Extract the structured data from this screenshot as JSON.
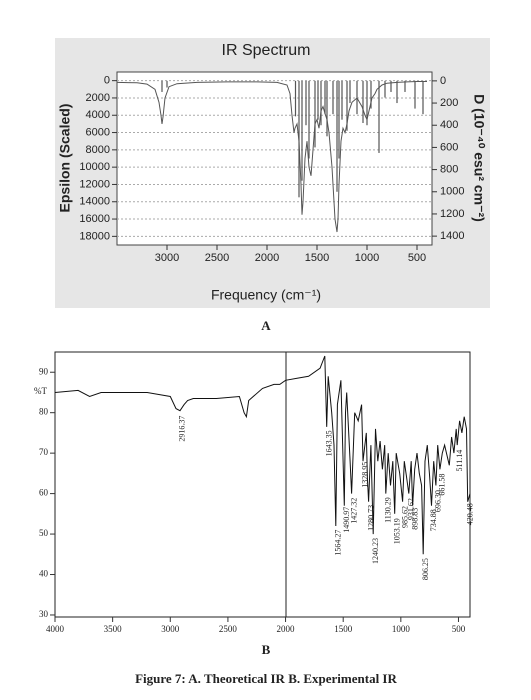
{
  "caption": "Figure 7: A. Theoretical IR B. Experimental IR",
  "chart_data": [
    {
      "type": "line",
      "title": "IR Spectrum",
      "panel_label": "A",
      "xlabel": "Frequency (cm⁻¹)",
      "ylabel": "Epsilon (Scaled)",
      "y2label": "D (10⁻⁴⁰ esu² cm⁻²)",
      "xlim": [
        3500,
        350
      ],
      "xticks": [
        3000,
        2500,
        2000,
        1500,
        1000,
        500
      ],
      "ylim": [
        19000,
        -1000
      ],
      "yticks": [
        0,
        2000,
        4000,
        6000,
        8000,
        10000,
        12000,
        14000,
        16000,
        18000
      ],
      "y2lim": [
        1480,
        -80
      ],
      "y2ticks": [
        0,
        200,
        400,
        600,
        800,
        1000,
        1200,
        1400
      ],
      "grid": true,
      "series": [
        {
          "color": "#555555",
          "x": [
            3500,
            3300,
            3200,
            3120,
            3080,
            3060,
            3050,
            3040,
            3020,
            2980,
            2900,
            2700,
            2400,
            2100,
            1900,
            1800,
            1770,
            1750,
            1730,
            1720,
            1700,
            1680,
            1660,
            1650,
            1640,
            1620,
            1600,
            1580,
            1560,
            1540,
            1520,
            1500,
            1480,
            1460,
            1440,
            1420,
            1400,
            1380,
            1350,
            1320,
            1300,
            1290,
            1280,
            1260,
            1240,
            1220,
            1200,
            1180,
            1150,
            1100,
            1050,
            1020,
            1000,
            980,
            950,
            920,
            900,
            880,
            850,
            800,
            700,
            600,
            500,
            400
          ],
          "values": [
            200,
            250,
            400,
            1000,
            2500,
            4000,
            5000,
            4200,
            2000,
            700,
            350,
            200,
            150,
            150,
            200,
            500,
            1500,
            4000,
            6000,
            5500,
            5000,
            7000,
            12000,
            15500,
            14000,
            9000,
            7000,
            10000,
            11000,
            8000,
            5000,
            4500,
            5500,
            3500,
            3000,
            3800,
            4500,
            6000,
            10000,
            16000,
            17500,
            16000,
            12000,
            7000,
            5500,
            6000,
            5000,
            3500,
            2500,
            2000,
            3000,
            4000,
            4500,
            3500,
            2000,
            1500,
            1000,
            800,
            500,
            300,
            200,
            150,
            100,
            100
          ]
        },
        {
          "type": "bar",
          "axis": "y2",
          "color": "#555555",
          "x": [
            3050,
            3000,
            1715,
            1680,
            1650,
            1610,
            1580,
            1520,
            1490,
            1460,
            1420,
            1400,
            1340,
            1300,
            1280,
            1250,
            1200,
            1170,
            1100,
            1040,
            1000,
            960,
            880,
            820,
            760,
            700,
            620,
            520,
            440
          ],
          "values": [
            100,
            60,
            320,
            1050,
            900,
            400,
            700,
            600,
            350,
            400,
            300,
            500,
            300,
            1000,
            700,
            350,
            450,
            200,
            300,
            380,
            400,
            250,
            650,
            150,
            100,
            200,
            100,
            250,
            300
          ]
        }
      ]
    },
    {
      "type": "line",
      "panel_label": "B",
      "ylabel": "%T",
      "xlim": [
        4000,
        400
      ],
      "xticks": [
        4000,
        3500,
        3000,
        2500,
        2000,
        1500,
        1000,
        500
      ],
      "ylim": [
        29.5,
        95
      ],
      "yticks": [
        30,
        40,
        50,
        60,
        70,
        80,
        90
      ],
      "grid": false,
      "series": [
        {
          "color": "#111111",
          "x": [
            4000,
            3800,
            3700,
            3600,
            3400,
            3200,
            3100,
            3000,
            2950,
            2916,
            2880,
            2850,
            2800,
            2600,
            2400,
            2360,
            2340,
            2320,
            2200,
            2100,
            2050,
            2000,
            1900,
            1800,
            1700,
            1660,
            1643,
            1630,
            1600,
            1580,
            1564,
            1550,
            1520,
            1490,
            1480,
            1470,
            1440,
            1427,
            1400,
            1370,
            1340,
            1328,
            1300,
            1290,
            1280,
            1260,
            1240,
            1220,
            1200,
            1180,
            1160,
            1140,
            1130,
            1110,
            1090,
            1070,
            1053,
            1040,
            1010,
            985,
            970,
            950,
            931,
            910,
            898,
            880,
            860,
            840,
            820,
            806,
            790,
            770,
            750,
            734,
            715,
            696,
            680,
            661,
            640,
            620,
            580,
            560,
            540,
            520,
            511,
            490,
            470,
            450,
            430,
            420,
            400
          ],
          "values": [
            85,
            85.5,
            84,
            85,
            85,
            85,
            84.5,
            84,
            81,
            80.5,
            82,
            83,
            83.5,
            83.5,
            84,
            80,
            79,
            83,
            86,
            87,
            87,
            88,
            88.5,
            89,
            91,
            94,
            76.5,
            89,
            80,
            72,
            52,
            82,
            88,
            57,
            80,
            85,
            68,
            60,
            80,
            78,
            82,
            68,
            75,
            64,
            58,
            72,
            50,
            76,
            68,
            73,
            66,
            72,
            60,
            70,
            62,
            68,
            55,
            70,
            65,
            58,
            68,
            64,
            60,
            68,
            57,
            66,
            70,
            65,
            62,
            45,
            68,
            72,
            64,
            57,
            68,
            62,
            72,
            66,
            70,
            72,
            67,
            74,
            70,
            76,
            72,
            78,
            75,
            79,
            76,
            58,
            60
          ]
        }
      ],
      "peaks": [
        2916.37,
        1643.35,
        1564.27,
        1490.97,
        1427.32,
        1328.95,
        1280.73,
        1240.23,
        1130.29,
        1053.19,
        985.62,
        931.62,
        898.83,
        806.25,
        734.88,
        696.3,
        661.58,
        511.14,
        420.48
      ],
      "peak_labels": [
        "2916.37",
        "1643.35",
        "1564.27",
        "1490.97",
        "1427.32",
        "1328.95",
        "1280.73",
        "1240.23",
        "1130.29",
        "1053.19",
        "985.62",
        "931.62",
        "898.83",
        "806.25",
        "734.88",
        "696.30",
        "661.58",
        "511.14",
        "420.48"
      ]
    }
  ]
}
